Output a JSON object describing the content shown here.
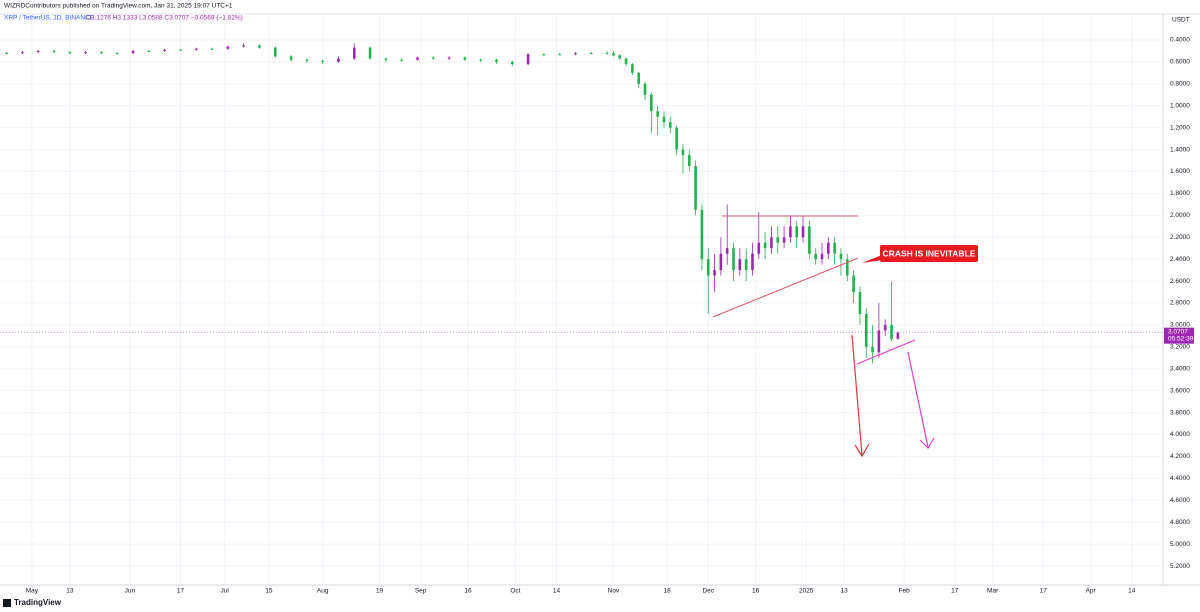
{
  "chart_data": {
    "type": "candlestick",
    "publisher": "WIZRDContributors published on TradingView.com, Jan 31, 2025 19:07 UTC+1",
    "title": "XRP / TetherUS, 1D, BINANCE",
    "subtitle": "O3.1276 H3.1333 L3.0588 C3.0707 −0.0569 (−1.82%)",
    "y_unit": "USDT",
    "annotations": [
      "CRASH IS INEVITABLE"
    ],
    "footer": "TradingView",
    "last_price": 3.0707,
    "countdown": "05:52:39",
    "up_color": "#22b14c",
    "down_color": "#9c27b0",
    "price_line_color": "#9c27b0",
    "grid": true,
    "y_inverted": true,
    "xlim": [
      -10.1,
      357.9
    ],
    "ylim": [
      0.163,
      5.373
    ],
    "xticks": [
      {
        "value": 0,
        "label": "May"
      },
      {
        "value": 12,
        "label": "13"
      },
      {
        "value": 31,
        "label": "Jun"
      },
      {
        "value": 47,
        "label": "17"
      },
      {
        "value": 61,
        "label": "Jul"
      },
      {
        "value": 75,
        "label": "15"
      },
      {
        "value": 92,
        "label": "Aug"
      },
      {
        "value": 110,
        "label": "19"
      },
      {
        "value": 123,
        "label": "Sep"
      },
      {
        "value": 138,
        "label": "16"
      },
      {
        "value": 153,
        "label": "Oct"
      },
      {
        "value": 166,
        "label": "14"
      },
      {
        "value": 184,
        "label": "Nov"
      },
      {
        "value": 201,
        "label": "18"
      },
      {
        "value": 214,
        "label": "Dec"
      },
      {
        "value": 229,
        "label": "16"
      },
      {
        "value": 245,
        "label": "2025"
      },
      {
        "value": 257,
        "label": "13"
      },
      {
        "value": 276,
        "label": "Feb"
      },
      {
        "value": 292,
        "label": "17"
      },
      {
        "value": 304,
        "label": "Mar"
      },
      {
        "value": 320,
        "label": "17"
      },
      {
        "value": 335,
        "label": "Apr"
      },
      {
        "value": 348,
        "label": "14"
      }
    ],
    "yticks": [
      {
        "value": 0.4,
        "label": "0.4000"
      },
      {
        "value": 0.6,
        "label": "0.6000"
      },
      {
        "value": 0.8,
        "label": "0.8000"
      },
      {
        "value": 1.0,
        "label": "1.0000"
      },
      {
        "value": 1.2,
        "label": "1.2000"
      },
      {
        "value": 1.4,
        "label": "1.4000"
      },
      {
        "value": 1.6,
        "label": "1.6000"
      },
      {
        "value": 1.8,
        "label": "1.8000"
      },
      {
        "value": 2.0,
        "label": "2.0000"
      },
      {
        "value": 2.2,
        "label": "2.2000"
      },
      {
        "value": 2.4,
        "label": "2.4000"
      },
      {
        "value": 2.6,
        "label": "2.6000"
      },
      {
        "value": 2.8,
        "label": "2.8000"
      },
      {
        "value": 3.0,
        "label": "3.0000"
      },
      {
        "value": 3.2,
        "label": "3.2000"
      },
      {
        "value": 3.4,
        "label": "3.4000"
      },
      {
        "value": 3.6,
        "label": "3.6000"
      },
      {
        "value": 3.8,
        "label": "3.8000"
      },
      {
        "value": 4.0,
        "label": "4.0000"
      },
      {
        "value": 4.2,
        "label": "4.2000"
      },
      {
        "value": 4.4,
        "label": "4.4000"
      },
      {
        "value": 4.6,
        "label": "4.6000"
      },
      {
        "value": 4.8,
        "label": "4.8000"
      },
      {
        "value": 5.0,
        "label": "5.0000"
      },
      {
        "value": 5.2,
        "label": "5.2000"
      }
    ],
    "candles": {
      "x": [
        -8,
        -3,
        2,
        7,
        12,
        17,
        22,
        27,
        32,
        37,
        42,
        47,
        52,
        57,
        62,
        67,
        72,
        77,
        82,
        87,
        92,
        97,
        102,
        107,
        112,
        117,
        122,
        127,
        132,
        137,
        142,
        147,
        152,
        157,
        162,
        167,
        172,
        177,
        182,
        184,
        186,
        188,
        190,
        192,
        194,
        196,
        198,
        200,
        202,
        204,
        206,
        208,
        210,
        212,
        214,
        216,
        218,
        220,
        222,
        224,
        226,
        228,
        230,
        232,
        234,
        236,
        238,
        240,
        242,
        244,
        246,
        248,
        250,
        252,
        254,
        256,
        258,
        260,
        262,
        264,
        266,
        268,
        270,
        272,
        274
      ],
      "open": [
        0.52,
        0.52,
        0.51,
        0.5,
        0.51,
        0.52,
        0.51,
        0.52,
        0.52,
        0.5,
        0.5,
        0.49,
        0.49,
        0.48,
        0.48,
        0.46,
        0.45,
        0.47,
        0.55,
        0.58,
        0.59,
        0.6,
        0.57,
        0.47,
        0.57,
        0.58,
        0.58,
        0.56,
        0.57,
        0.56,
        0.58,
        0.58,
        0.6,
        0.62,
        0.53,
        0.53,
        0.53,
        0.52,
        0.52,
        0.52,
        0.54,
        0.57,
        0.62,
        0.7,
        0.8,
        0.9,
        1.05,
        1.1,
        1.15,
        1.2,
        1.4,
        1.45,
        1.55,
        1.95,
        2.4,
        2.55,
        2.5,
        2.35,
        2.3,
        2.5,
        2.4,
        2.5,
        2.35,
        2.25,
        2.3,
        2.2,
        2.25,
        2.2,
        2.1,
        2.2,
        2.1,
        2.35,
        2.4,
        2.35,
        2.25,
        2.35,
        2.4,
        2.55,
        2.7,
        2.9,
        3.2,
        3.25,
        3.05,
        3.0,
        3.1276
      ],
      "high": [
        0.53,
        0.53,
        0.52,
        0.52,
        0.53,
        0.53,
        0.53,
        0.53,
        0.53,
        0.51,
        0.51,
        0.5,
        0.5,
        0.49,
        0.49,
        0.47,
        0.48,
        0.56,
        0.6,
        0.61,
        0.62,
        0.61,
        0.58,
        0.58,
        0.6,
        0.6,
        0.59,
        0.58,
        0.58,
        0.59,
        0.6,
        0.62,
        0.64,
        0.63,
        0.55,
        0.54,
        0.54,
        0.53,
        0.53,
        0.55,
        0.58,
        0.64,
        0.72,
        0.84,
        0.95,
        1.25,
        1.27,
        1.2,
        1.25,
        1.45,
        1.62,
        1.6,
        2.0,
        2.5,
        2.9,
        2.7,
        2.55,
        2.45,
        2.6,
        2.55,
        2.6,
        2.55,
        2.4,
        2.4,
        2.35,
        2.35,
        2.3,
        2.25,
        2.3,
        2.25,
        2.4,
        2.45,
        2.45,
        2.4,
        2.45,
        2.55,
        2.6,
        2.8,
        3.0,
        3.3,
        3.35,
        3.3,
        3.1,
        3.15,
        3.1333
      ],
      "low": [
        0.51,
        0.5,
        0.49,
        0.49,
        0.5,
        0.5,
        0.5,
        0.51,
        0.49,
        0.49,
        0.48,
        0.48,
        0.47,
        0.47,
        0.45,
        0.43,
        0.44,
        0.46,
        0.54,
        0.57,
        0.58,
        0.55,
        0.43,
        0.46,
        0.56,
        0.57,
        0.55,
        0.55,
        0.55,
        0.55,
        0.57,
        0.57,
        0.59,
        0.52,
        0.52,
        0.52,
        0.51,
        0.51,
        0.5,
        0.5,
        0.53,
        0.56,
        0.61,
        0.69,
        0.78,
        0.88,
        1.0,
        1.05,
        1.1,
        1.18,
        1.35,
        1.4,
        1.5,
        1.9,
        2.3,
        2.35,
        2.2,
        1.9,
        2.25,
        2.3,
        2.3,
        2.25,
        1.97,
        2.15,
        2.1,
        2.1,
        2.1,
        2.0,
        2.05,
        2.0,
        2.05,
        2.3,
        2.25,
        2.2,
        2.2,
        2.3,
        2.35,
        2.5,
        2.65,
        2.85,
        3.0,
        2.8,
        2.95,
        2.6,
        3.0588
      ],
      "close": [
        0.52,
        0.51,
        0.5,
        0.51,
        0.52,
        0.51,
        0.52,
        0.52,
        0.5,
        0.5,
        0.49,
        0.49,
        0.48,
        0.48,
        0.46,
        0.45,
        0.47,
        0.55,
        0.58,
        0.59,
        0.6,
        0.57,
        0.47,
        0.57,
        0.58,
        0.58,
        0.56,
        0.57,
        0.56,
        0.58,
        0.58,
        0.6,
        0.62,
        0.53,
        0.53,
        0.53,
        0.52,
        0.52,
        0.52,
        0.54,
        0.57,
        0.62,
        0.7,
        0.8,
        0.9,
        1.05,
        1.1,
        1.15,
        1.2,
        1.4,
        1.45,
        1.55,
        1.95,
        2.4,
        2.55,
        2.5,
        2.35,
        2.3,
        2.5,
        2.4,
        2.5,
        2.35,
        2.25,
        2.3,
        2.2,
        2.25,
        2.2,
        2.1,
        2.2,
        2.1,
        2.35,
        2.4,
        2.35,
        2.25,
        2.35,
        2.4,
        2.55,
        2.7,
        2.9,
        3.2,
        3.25,
        3.05,
        3.0,
        3.13,
        3.0707
      ]
    }
  }
}
